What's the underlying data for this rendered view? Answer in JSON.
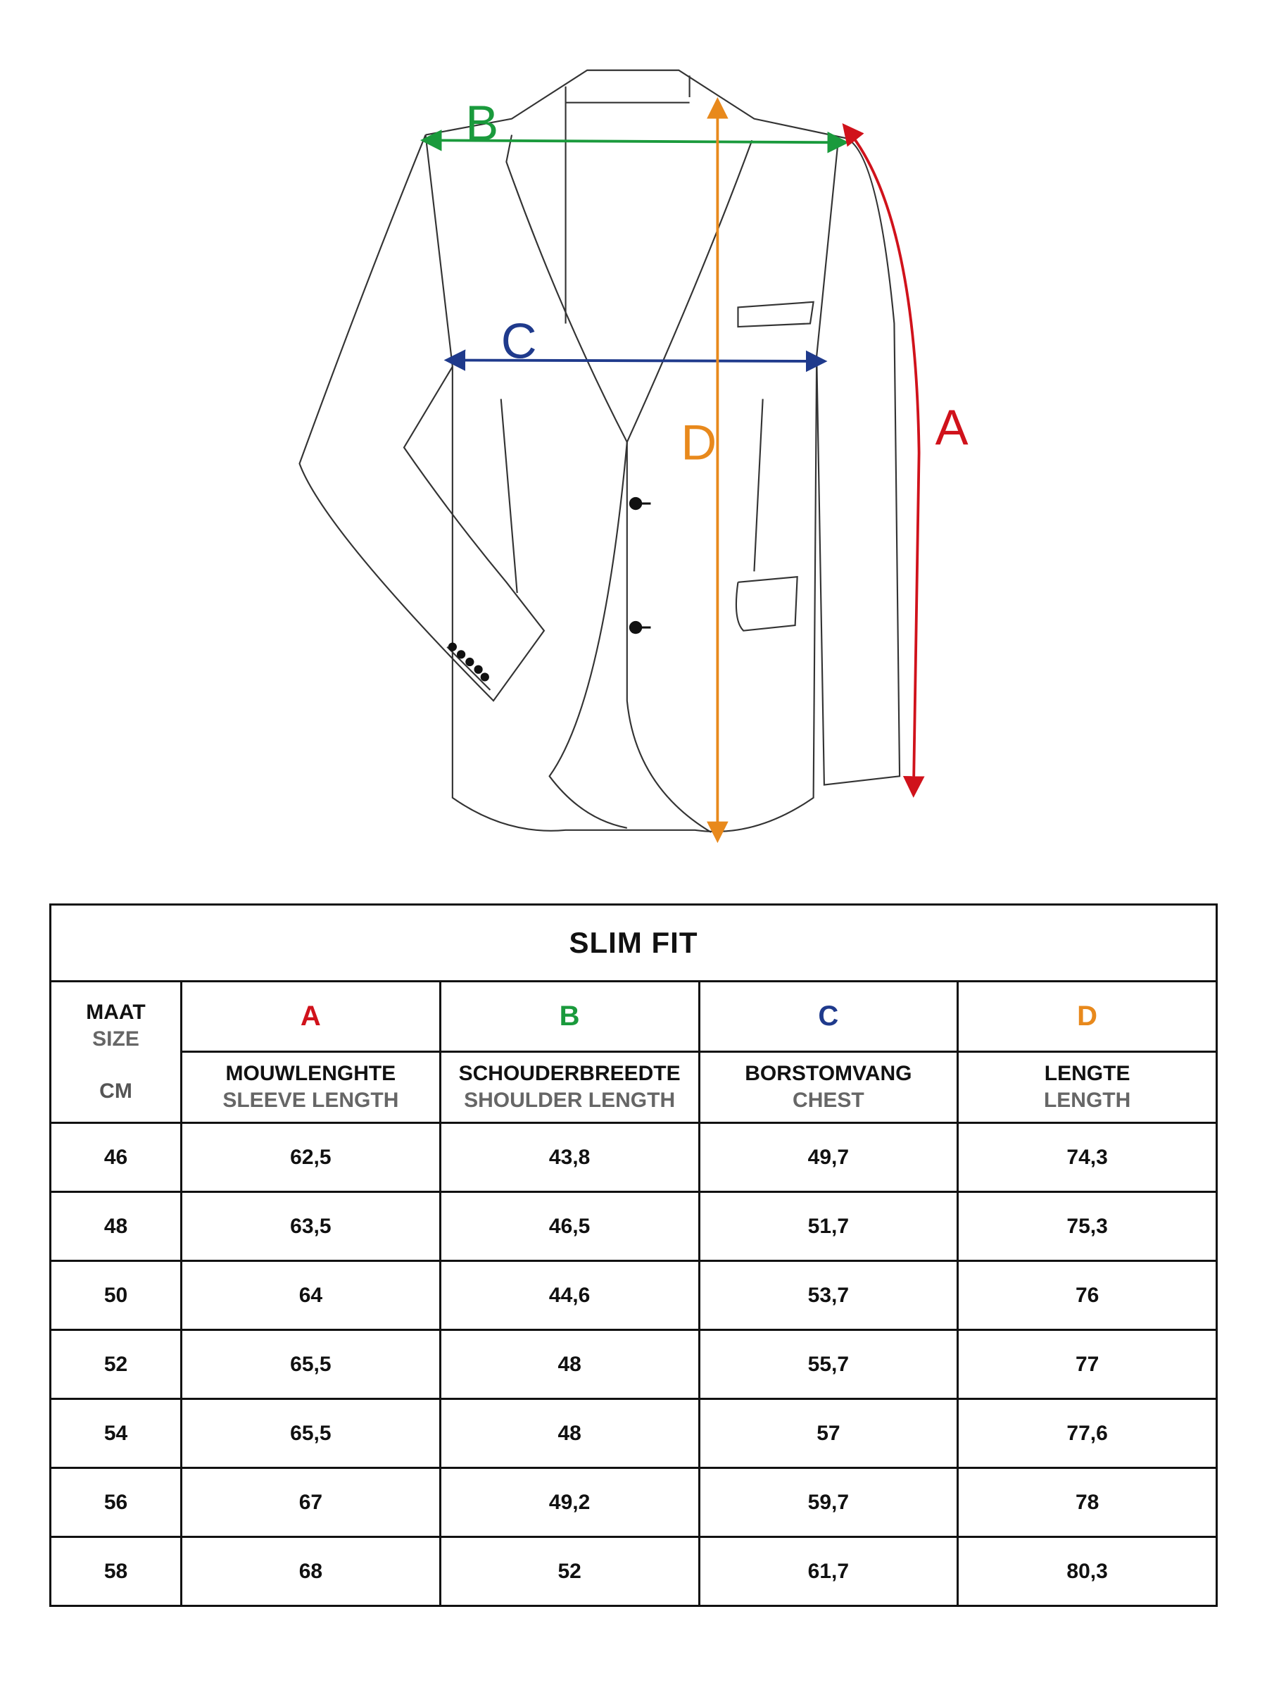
{
  "colors": {
    "A": "#d0121b",
    "B": "#1a9a3c",
    "C": "#1f3a8c",
    "D": "#e8891c"
  },
  "diagram": {
    "labels": {
      "A": "A",
      "B": "B",
      "C": "C",
      "D": "D"
    }
  },
  "table": {
    "title": "SLIM FIT",
    "size_header": {
      "nl": "MAAT",
      "en": "SIZE",
      "unit": "CM"
    },
    "columns": [
      {
        "letter": "A",
        "nl": "MOUWLENGHTE",
        "en": "SLEEVE LENGTH"
      },
      {
        "letter": "B",
        "nl": "SCHOUDERBREEDTE",
        "en": "SHOULDER LENGTH"
      },
      {
        "letter": "C",
        "nl": "BORSTOMVANG",
        "en": "CHEST"
      },
      {
        "letter": "D",
        "nl": "LENGTE",
        "en": "LENGTH"
      }
    ],
    "rows": [
      [
        "46",
        "62,5",
        "43,8",
        "49,7",
        "74,3"
      ],
      [
        "48",
        "63,5",
        "46,5",
        "51,7",
        "75,3"
      ],
      [
        "50",
        "64",
        "44,6",
        "53,7",
        "76"
      ],
      [
        "52",
        "65,5",
        "48",
        "55,7",
        "77"
      ],
      [
        "54",
        "65,5",
        "48",
        "57",
        "77,6"
      ],
      [
        "56",
        "67",
        "49,2",
        "59,7",
        "78"
      ],
      [
        "58",
        "68",
        "52",
        "61,7",
        "80,3"
      ]
    ]
  }
}
